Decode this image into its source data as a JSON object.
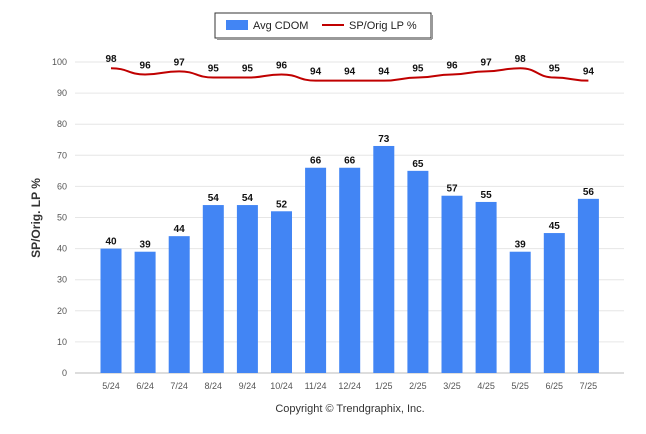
{
  "chart_data": {
    "type": "bar",
    "categories": [
      "5/24",
      "6/24",
      "7/24",
      "8/24",
      "9/24",
      "10/24",
      "11/24",
      "12/24",
      "1/25",
      "2/25",
      "3/25",
      "4/25",
      "5/25",
      "6/25",
      "7/25"
    ],
    "series": [
      {
        "name": "Avg CDOM",
        "kind": "bar",
        "color": "#4285f4",
        "values": [
          40,
          39,
          44,
          54,
          54,
          52,
          66,
          66,
          73,
          65,
          57,
          55,
          39,
          45,
          56
        ]
      },
      {
        "name": "SP/Orig LP %",
        "kind": "line",
        "color": "#c00000",
        "values": [
          98,
          96,
          97,
          95,
          95,
          96,
          94,
          94,
          94,
          95,
          96,
          97,
          98,
          95,
          94
        ]
      }
    ],
    "title": "",
    "xlabel": "",
    "ylabel": "SP/Orig. LP %",
    "ylim": [
      0,
      100
    ],
    "yticks": [
      0,
      10,
      20,
      30,
      40,
      50,
      60,
      70,
      80,
      90,
      100
    ],
    "grid": true,
    "legend_position": "top-center",
    "footer": "Copyright © Trendgraphix, Inc."
  }
}
